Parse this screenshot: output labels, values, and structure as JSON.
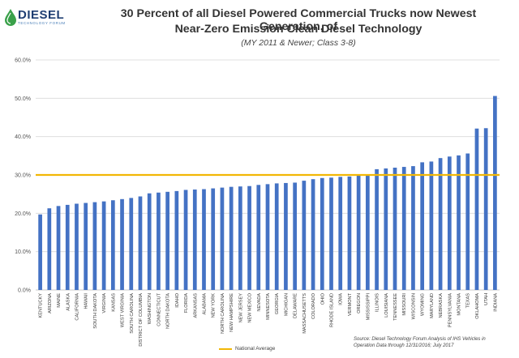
{
  "logo": {
    "word": "DIESEL",
    "tagline": "TECHNOLOGY FORUM"
  },
  "colors": {
    "bar": "#4472c4",
    "average_line": "#f2b705",
    "grid": "#d9d9d9",
    "logo": "#1f3e72"
  },
  "chart_data": {
    "type": "bar",
    "title": "30 Percent of all Diesel Powered Commercial Trucks now Newest Generation, of Near-Zero Emission Clean Diesel Technology",
    "title_lines": [
      "30 Percent of all Diesel Powered Commercial Trucks now Newest Generation, of",
      "Near-Zero Emission Clean Diesel Technology"
    ],
    "subtitle": "(MY 2011 & Newer; Class 3-8)",
    "xlabel": "",
    "ylabel": "",
    "ylim": [
      0,
      60
    ],
    "yticks": [
      "0.0%",
      "10.0%",
      "20.0%",
      "30.0%",
      "40.0%",
      "50.0%",
      "60.0%"
    ],
    "grid": true,
    "categories": [
      "KENTUCKY",
      "ARIZONA",
      "MAINE",
      "ALASKA",
      "CALIFORNIA",
      "HAWAII",
      "SOUTH DAKOTA",
      "VIRGINIA",
      "KANSAS",
      "WEST VIRGINIA",
      "SOUTH CAROLINA",
      "DISTRICT OF COLUMBIA",
      "WASHINGTON",
      "CONNECTICUT",
      "NORTH DAKOTA",
      "IDAHO",
      "FLORIDA",
      "ARKANSAS",
      "ALABAMA",
      "NEW YORK",
      "NORTH CAROLINA",
      "NEW HAMPSHIRE",
      "NEW JERSEY",
      "NEW MEXICO",
      "NEVADA",
      "MINNESOTA",
      "GEORGIA",
      "MICHIGAN",
      "DELAWARE",
      "MASSACHUSETTS",
      "COLORADO",
      "OHIO",
      "RHODE ISLAND",
      "IOWA",
      "VERMONT",
      "OREGON",
      "MISSISSIPPI",
      "ILLINOIS",
      "LOUISIANA",
      "TENNESSEE",
      "MISSOURI",
      "WISCONSIN",
      "WYOMING",
      "MARYLAND",
      "NEBRASKA",
      "PENNSYLVANIA",
      "MONTANA",
      "TEXAS",
      "OKLAHOMA",
      "UTAH",
      "INDIANA"
    ],
    "series": [
      {
        "name": "",
        "values": [
          19.7,
          21.3,
          21.9,
          22.2,
          22.5,
          22.7,
          22.9,
          23.1,
          23.4,
          23.7,
          24.0,
          24.4,
          25.2,
          25.4,
          25.6,
          25.8,
          26.1,
          26.2,
          26.3,
          26.5,
          26.7,
          26.9,
          27.0,
          27.1,
          27.4,
          27.6,
          27.8,
          27.9,
          28.0,
          28.5,
          28.9,
          29.2,
          29.3,
          29.5,
          29.6,
          29.8,
          30.0,
          31.5,
          31.7,
          31.9,
          32.1,
          32.3,
          33.3,
          33.5,
          34.4,
          34.8,
          35.1,
          35.6,
          42.1,
          42.2,
          50.6
        ]
      }
    ],
    "reference_line": {
      "name": "National Average",
      "value": 30
    },
    "legend": {
      "position": "bottom",
      "entries": [
        "National Average"
      ]
    },
    "source": "Source: Diesel Technology Forum Analysis of IHS Vehicles in Operation Data through 12/31/2016; July 2017",
    "source_lines": [
      "Source:  Diesel Technology Forum Analysis of IHS Vehicles in",
      "Operation Data through 12/31/2016;  July 2017"
    ]
  }
}
